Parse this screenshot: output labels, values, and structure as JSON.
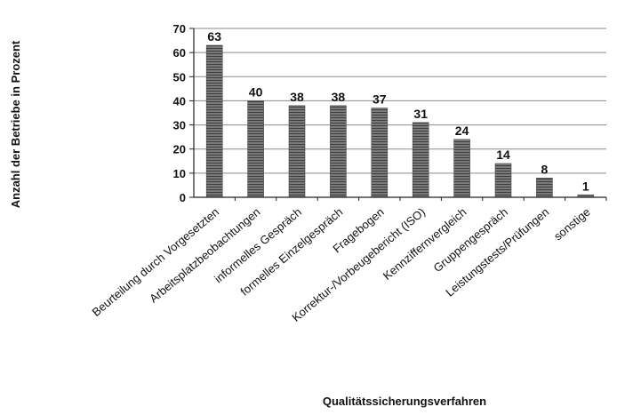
{
  "chart_data": {
    "type": "bar",
    "xlabel": "Qualitätssicherungsverfahren",
    "ylabel": "Anzahl der Betriebe in Prozent",
    "ylim": [
      0,
      70
    ],
    "yticks": [
      0,
      10,
      20,
      30,
      40,
      50,
      60,
      70
    ],
    "grid": true,
    "categories": [
      "Beurteilung durch Vorgesetzten",
      "Arbeitsplatzbeobachtungen",
      "informelles Gespräch",
      "formelles Einzelgespräch",
      "Fragebogen",
      "Korrektur-/Vorbeugebericht (ISO)",
      "Kennziffernvergleich",
      "Gruppengespräch",
      "Leistungstests/Prüfungen",
      "sonstige"
    ],
    "values": [
      63,
      40,
      38,
      38,
      37,
      31,
      24,
      14,
      8,
      1
    ],
    "value_labels": [
      "63",
      "40",
      "38",
      "38",
      "37",
      "31",
      "24",
      "14",
      "8",
      "1"
    ],
    "colors": {
      "bar": "#6a6a6a",
      "bar_dark": "#4a4a4a",
      "grid": "#8a8a8a",
      "axis": "#222222"
    }
  }
}
